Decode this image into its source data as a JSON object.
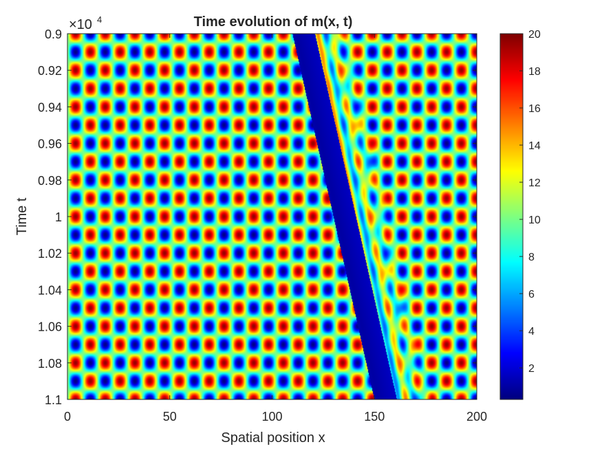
{
  "chart_data": {
    "type": "heatmap",
    "title": "Time evolution of m(x, t)",
    "xlabel": "Spatial position x",
    "ylabel": "Time t",
    "xlim": [
      0,
      200
    ],
    "ylim": [
      9000,
      11000
    ],
    "y_direction": "reversed",
    "x_ticks": [
      0,
      50,
      100,
      150,
      200
    ],
    "x_tick_labels": [
      "0",
      "50",
      "100",
      "150",
      "200"
    ],
    "y_ticks": [
      9000,
      9200,
      9400,
      9600,
      9800,
      10000,
      10200,
      10400,
      10600,
      10800,
      11000
    ],
    "y_tick_labels": [
      "0.9",
      "0.92",
      "0.94",
      "0.96",
      "0.98",
      "1",
      "1.02",
      "1.04",
      "1.06",
      "1.08",
      "1.1"
    ],
    "y_exponent_base": "×10",
    "y_exponent": "4",
    "colormap": "jet",
    "clim": [
      0.3,
      20
    ],
    "colorbar_ticks": [
      2,
      4,
      6,
      8,
      10,
      12,
      14,
      16,
      18,
      20
    ],
    "colorbar_tick_labels": [
      "2",
      "4",
      "6",
      "8",
      "10",
      "12",
      "14",
      "16",
      "18",
      "20"
    ],
    "pattern": {
      "mean": 10,
      "amplitude": 9.5,
      "spatial_period_x": 14.5,
      "temporal_period_t": 200,
      "front_x_at_t_min": 112,
      "front_x_at_t_max": 152,
      "front_width_x": 9,
      "trailing_wave_period_x": 7.2,
      "trailing_wave_amplitude": 5,
      "trailing_wave_mean": 10
    }
  }
}
